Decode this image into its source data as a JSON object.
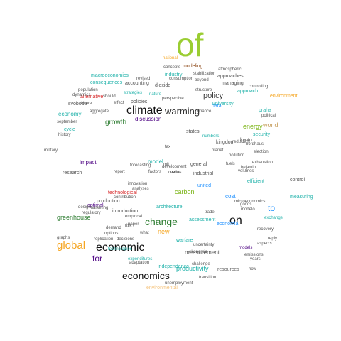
{
  "wordcloud": {
    "words": [
      {
        "text": "of",
        "color": "#9acd32"
      },
      {
        "text": "climate",
        "color": "#111111"
      },
      {
        "text": "warming",
        "color": "#333333"
      },
      {
        "text": "policy",
        "color": "#3a3a3a"
      },
      {
        "text": "growth",
        "color": "#2e7d32"
      },
      {
        "text": "change",
        "color": "#2e7d32"
      },
      {
        "text": "on",
        "color": "#111111"
      },
      {
        "text": "global",
        "color": "#f5a623"
      },
      {
        "text": "economic",
        "color": "#111111"
      },
      {
        "text": "for",
        "color": "#4b0082"
      },
      {
        "text": "economics",
        "color": "#111111"
      },
      {
        "text": "to",
        "color": "#1e90ff"
      },
      {
        "text": "greenhouse",
        "color": "#2e7d32"
      },
      {
        "text": "productivity",
        "color": "#20b2aa"
      },
      {
        "text": "carbon",
        "color": "#7cb518"
      },
      {
        "text": "energy",
        "color": "#7cb518"
      },
      {
        "text": "world",
        "color": "#c8a060"
      },
      {
        "text": "modeling",
        "color": "#8b4513"
      },
      {
        "text": "economy",
        "color": "#20b2aa"
      },
      {
        "text": "new",
        "color": "#f5a623"
      },
      {
        "text": "impact",
        "color": "#4b0082"
      },
      {
        "text": "alternative",
        "color": "#d62728"
      },
      {
        "text": "discussion",
        "color": "#4b0082"
      },
      {
        "text": "measurement",
        "color": "#555555"
      },
      {
        "text": "environmental",
        "color": "#f5c27a"
      },
      {
        "text": "resources",
        "color": "#666666"
      },
      {
        "text": "research",
        "color": "#555555"
      },
      {
        "text": "optimal",
        "color": "#4b0082"
      },
      {
        "text": "technological",
        "color": "#d62728"
      },
      {
        "text": "model",
        "color": "#20b2aa"
      },
      {
        "text": "united",
        "color": "#1e90ff"
      },
      {
        "text": "industrial",
        "color": "#555555"
      },
      {
        "text": "states",
        "color": "#555555"
      },
      {
        "text": "kingdom",
        "color": "#555555"
      },
      {
        "text": "development",
        "color": "#555555"
      },
      {
        "text": "economia",
        "color": "#1e90ff"
      },
      {
        "text": "models",
        "color": "#4b0082"
      },
      {
        "text": "cost",
        "color": "#1e90ff"
      },
      {
        "text": "approaches",
        "color": "#555555"
      },
      {
        "text": "accounting",
        "color": "#555555"
      },
      {
        "text": "policies",
        "color": "#555555"
      },
      {
        "text": "consequences",
        "color": "#20b2aa"
      },
      {
        "text": "macroeconomics",
        "color": "#20b2aa"
      },
      {
        "text": "dioxide",
        "color": "#555555"
      },
      {
        "text": "managing",
        "color": "#555555"
      },
      {
        "text": "uncertainty",
        "color": "#555555"
      },
      {
        "text": "architecture",
        "color": "#20b2aa"
      },
      {
        "text": "ekonomie",
        "color": "#555555"
      },
      {
        "text": "independence",
        "color": "#20b2aa"
      },
      {
        "text": "adaptation",
        "color": "#555555"
      },
      {
        "text": "demand",
        "color": "#555555"
      },
      {
        "text": "introduction",
        "color": "#555555"
      },
      {
        "text": "unemployment",
        "color": "#555555"
      },
      {
        "text": "control",
        "color": "#555555"
      },
      {
        "text": "kyoto",
        "color": "#555555"
      },
      {
        "text": "history",
        "color": "#555555"
      },
      {
        "text": "military",
        "color": "#555555"
      },
      {
        "text": "cycle",
        "color": "#20b2aa"
      },
      {
        "text": "national",
        "color": "#f5a623"
      },
      {
        "text": "security",
        "color": "#20b2aa"
      },
      {
        "text": "efficient",
        "color": "#20b2aa"
      },
      {
        "text": "political",
        "color": "#555555"
      },
      {
        "text": "controlling",
        "color": "#555555"
      },
      {
        "text": "measuring",
        "color": "#20b2aa"
      },
      {
        "text": "recovery",
        "color": "#555555"
      },
      {
        "text": "exchange",
        "color": "#20b2aa"
      },
      {
        "text": "emissions",
        "color": "#555555"
      },
      {
        "text": "years",
        "color": "#555555"
      },
      {
        "text": "how",
        "color": "#555555"
      },
      {
        "text": "strategies",
        "color": "#20b2aa"
      },
      {
        "text": "nature",
        "color": "#20b2aa"
      },
      {
        "text": "technologies",
        "color": "#20b2aa"
      },
      {
        "text": "production",
        "color": "#555555"
      },
      {
        "text": "expenditures",
        "color": "#20b2aa"
      },
      {
        "text": "future",
        "color": "#555555"
      },
      {
        "text": "effect",
        "color": "#555555"
      },
      {
        "text": "trade",
        "color": "#555555"
      },
      {
        "text": "tax",
        "color": "#555555"
      },
      {
        "text": "risk",
        "color": "#555555"
      },
      {
        "text": "data",
        "color": "#1e90ff"
      },
      {
        "text": "reduction",
        "color": "#555555"
      },
      {
        "text": "atmospheric",
        "color": "#555555"
      },
      {
        "text": "concepts",
        "color": "#555555"
      },
      {
        "text": "stabilization",
        "color": "#555555"
      },
      {
        "text": "consumption",
        "color": "#555555"
      },
      {
        "text": "beyond",
        "color": "#555555"
      },
      {
        "text": "revised",
        "color": "#555555"
      },
      {
        "text": "population",
        "color": "#555555"
      },
      {
        "text": "dynamics",
        "color": "#555555"
      },
      {
        "text": "perspective",
        "color": "#555555"
      },
      {
        "text": "finance",
        "color": "#555555"
      },
      {
        "text": "svoboda",
        "color": "#555555"
      },
      {
        "text": "should",
        "color": "#555555"
      },
      {
        "text": "aggregate",
        "color": "#555555"
      },
      {
        "text": "september",
        "color": "#555555"
      },
      {
        "text": "report",
        "color": "#555555"
      },
      {
        "text": "forecasting",
        "color": "#555555"
      },
      {
        "text": "innovation",
        "color": "#555555"
      },
      {
        "text": "contribution",
        "color": "#555555"
      },
      {
        "text": "analyses",
        "color": "#555555"
      },
      {
        "text": "regulatory",
        "color": "#555555"
      },
      {
        "text": "design",
        "color": "#555555"
      },
      {
        "text": "marketing",
        "color": "#555555"
      },
      {
        "text": "empirical",
        "color": "#555555"
      },
      {
        "text": "paper",
        "color": "#555555"
      },
      {
        "text": "what",
        "color": "#555555"
      },
      {
        "text": "options",
        "color": "#555555"
      },
      {
        "text": "replication",
        "color": "#555555"
      },
      {
        "text": "challenge",
        "color": "#555555"
      },
      {
        "text": "graphs",
        "color": "#555555"
      },
      {
        "text": "decisions",
        "color": "#555555"
      },
      {
        "text": "environment",
        "color": "#f5a623"
      },
      {
        "text": "approach",
        "color": "#20b2aa"
      },
      {
        "text": "nordhaus",
        "color": "#555555"
      },
      {
        "text": "bejamin",
        "color": "#555555"
      },
      {
        "text": "exhaustion",
        "color": "#555555"
      },
      {
        "text": "modelo",
        "color": "#555555"
      },
      {
        "text": "microeconomics",
        "color": "#555555"
      },
      {
        "text": "goods",
        "color": "#555555"
      },
      {
        "text": "reply",
        "color": "#555555"
      },
      {
        "text": "aspects",
        "color": "#555555"
      },
      {
        "text": "cowles",
        "color": "#555555"
      },
      {
        "text": "praha",
        "color": "#20b2aa"
      },
      {
        "text": "university",
        "color": "#20b2aa"
      },
      {
        "text": "industry",
        "color": "#20b2aa"
      },
      {
        "text": "structure",
        "color": "#555555"
      },
      {
        "text": "planet",
        "color": "#555555"
      },
      {
        "text": "election",
        "color": "#555555"
      },
      {
        "text": "volumes",
        "color": "#555555"
      },
      {
        "text": "fuels",
        "color": "#555555"
      },
      {
        "text": "factors",
        "color": "#555555"
      },
      {
        "text": "mit",
        "color": "#555555"
      },
      {
        "text": "general",
        "color": "#555555"
      },
      {
        "text": "warfare",
        "color": "#20b2aa"
      },
      {
        "text": "assessment",
        "color": "#20b2aa"
      },
      {
        "text": "numbers",
        "color": "#20b2aa"
      },
      {
        "text": "pollution",
        "color": "#555555"
      },
      {
        "text": "transition",
        "color": "#555555"
      },
      {
        "text": "value",
        "color": "#555555"
      }
    ]
  }
}
